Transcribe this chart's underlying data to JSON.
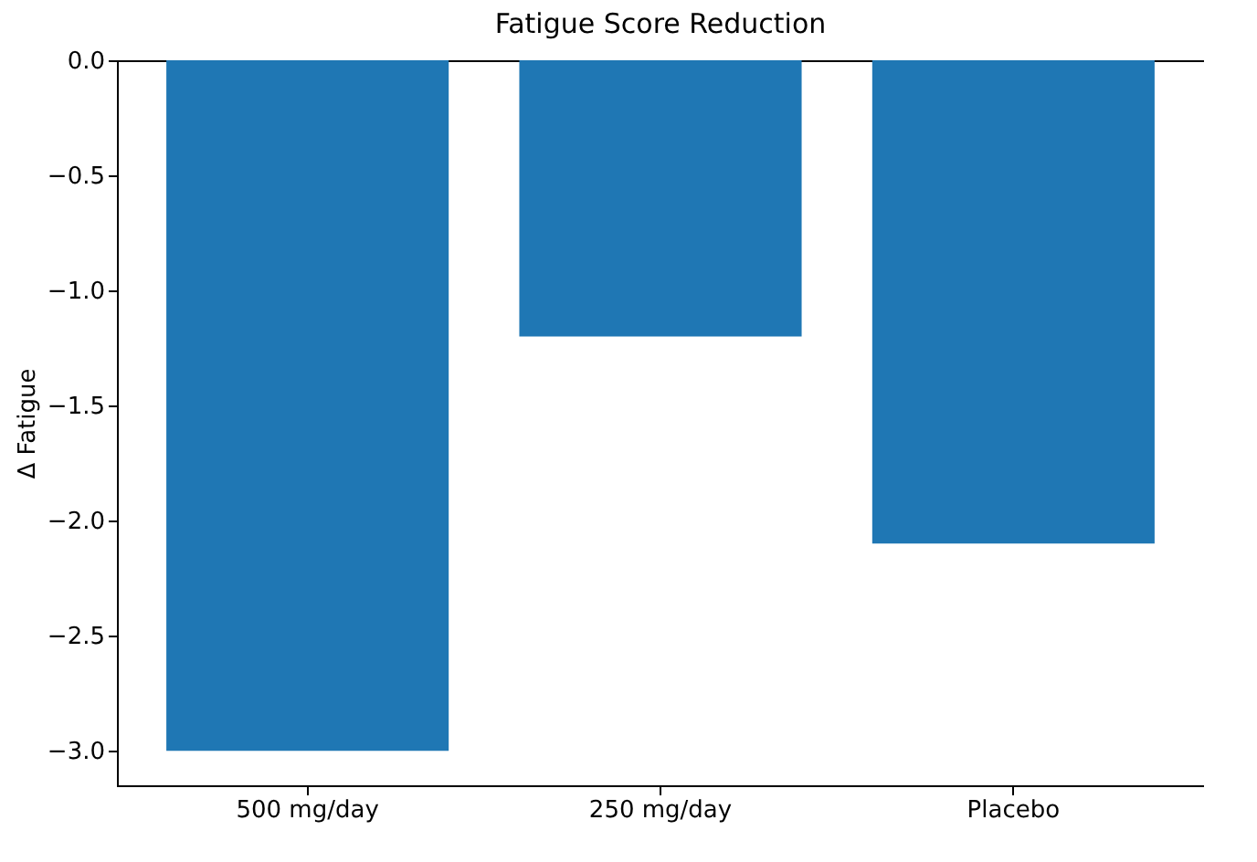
{
  "chart_data": {
    "type": "bar",
    "title": "Fatigue Score Reduction",
    "ylabel": "Δ Fatigue",
    "categories": [
      "500 mg/day",
      "250 mg/day",
      "Placebo"
    ],
    "values": [
      -3.0,
      -1.2,
      -2.1
    ],
    "color": "#1f77b4",
    "ylim": [
      -3.15,
      0
    ],
    "yticks": [
      {
        "value": 0,
        "label": "0.0"
      },
      {
        "value": -0.5,
        "label": "−0.5"
      },
      {
        "value": -1.0,
        "label": "−1.0"
      },
      {
        "value": -1.5,
        "label": "−1.5"
      },
      {
        "value": -2.0,
        "label": "−2.0"
      },
      {
        "value": -2.5,
        "label": "−2.5"
      },
      {
        "value": -3.0,
        "label": "−3.0"
      }
    ],
    "grid": false
  }
}
